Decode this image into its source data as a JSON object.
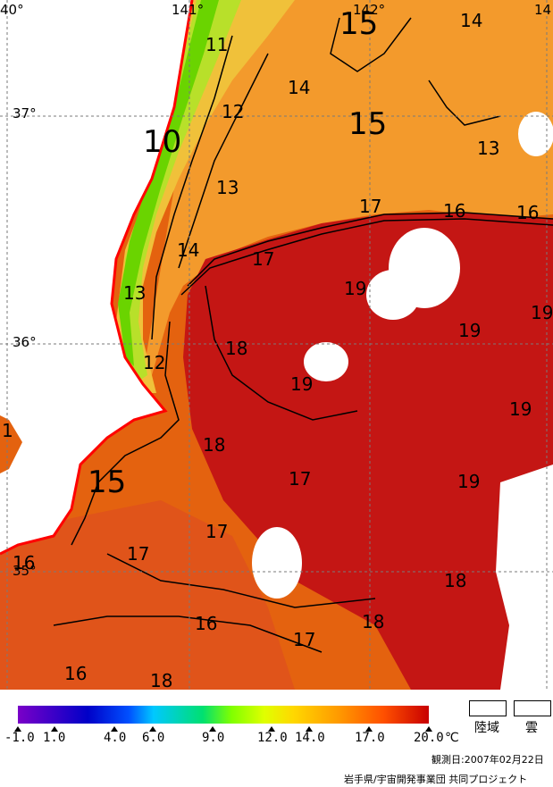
{
  "map": {
    "lon_labels": [
      "40°",
      "141°",
      "142°",
      "14"
    ],
    "lat_labels": [
      "37°",
      "36°",
      "35°"
    ],
    "contour_labels": [
      {
        "text": "11",
        "size": "normal"
      },
      {
        "text": "12",
        "size": "normal"
      },
      {
        "text": "10",
        "size": "big"
      },
      {
        "text": "13",
        "size": "normal"
      },
      {
        "text": "14",
        "size": "normal"
      },
      {
        "text": "13",
        "size": "normal"
      },
      {
        "text": "12",
        "size": "normal"
      },
      {
        "text": "15",
        "size": "big"
      },
      {
        "text": "14",
        "size": "normal"
      },
      {
        "text": "15",
        "size": "big"
      },
      {
        "text": "15",
        "size": "big"
      },
      {
        "text": "14",
        "size": "normal"
      },
      {
        "text": "13",
        "size": "normal"
      },
      {
        "text": "17",
        "size": "normal"
      },
      {
        "text": "16",
        "size": "normal"
      },
      {
        "text": "16",
        "size": "normal"
      },
      {
        "text": "17",
        "size": "normal"
      },
      {
        "text": "19",
        "size": "normal"
      },
      {
        "text": "19",
        "size": "normal"
      },
      {
        "text": "19",
        "size": "normal"
      },
      {
        "text": "18",
        "size": "normal"
      },
      {
        "text": "19",
        "size": "normal"
      },
      {
        "text": "19",
        "size": "normal"
      },
      {
        "text": "18",
        "size": "normal"
      },
      {
        "text": "17",
        "size": "normal"
      },
      {
        "text": "19",
        "size": "normal"
      },
      {
        "text": "17",
        "size": "normal"
      },
      {
        "text": "17",
        "size": "normal"
      },
      {
        "text": "18",
        "size": "normal"
      },
      {
        "text": "16",
        "size": "normal"
      },
      {
        "text": "18",
        "size": "normal"
      },
      {
        "text": "17",
        "size": "normal"
      },
      {
        "text": "16",
        "size": "normal"
      },
      {
        "text": "18",
        "size": "normal"
      },
      {
        "text": "16",
        "size": "normal"
      },
      {
        "text": "1",
        "size": "normal"
      }
    ]
  },
  "legend": {
    "ticks": [
      "-1.0",
      "1.0",
      "4.0",
      "6.0",
      "9.0",
      "12.0",
      "14.0",
      "17.0",
      "20.0"
    ],
    "unit": "℃",
    "land_label": "陸域",
    "cloud_label": "雲",
    "observation_date": "観測日:2007年02月22日",
    "credit": "岩手県/宇宙開発事業団 共同プロジェクト"
  },
  "colors": {
    "land": "#ffffff",
    "coast": "#ff0000",
    "warm": "#c81010",
    "mid": "#e85a14",
    "cool": "#f59628",
    "cold": "#7ee000"
  }
}
